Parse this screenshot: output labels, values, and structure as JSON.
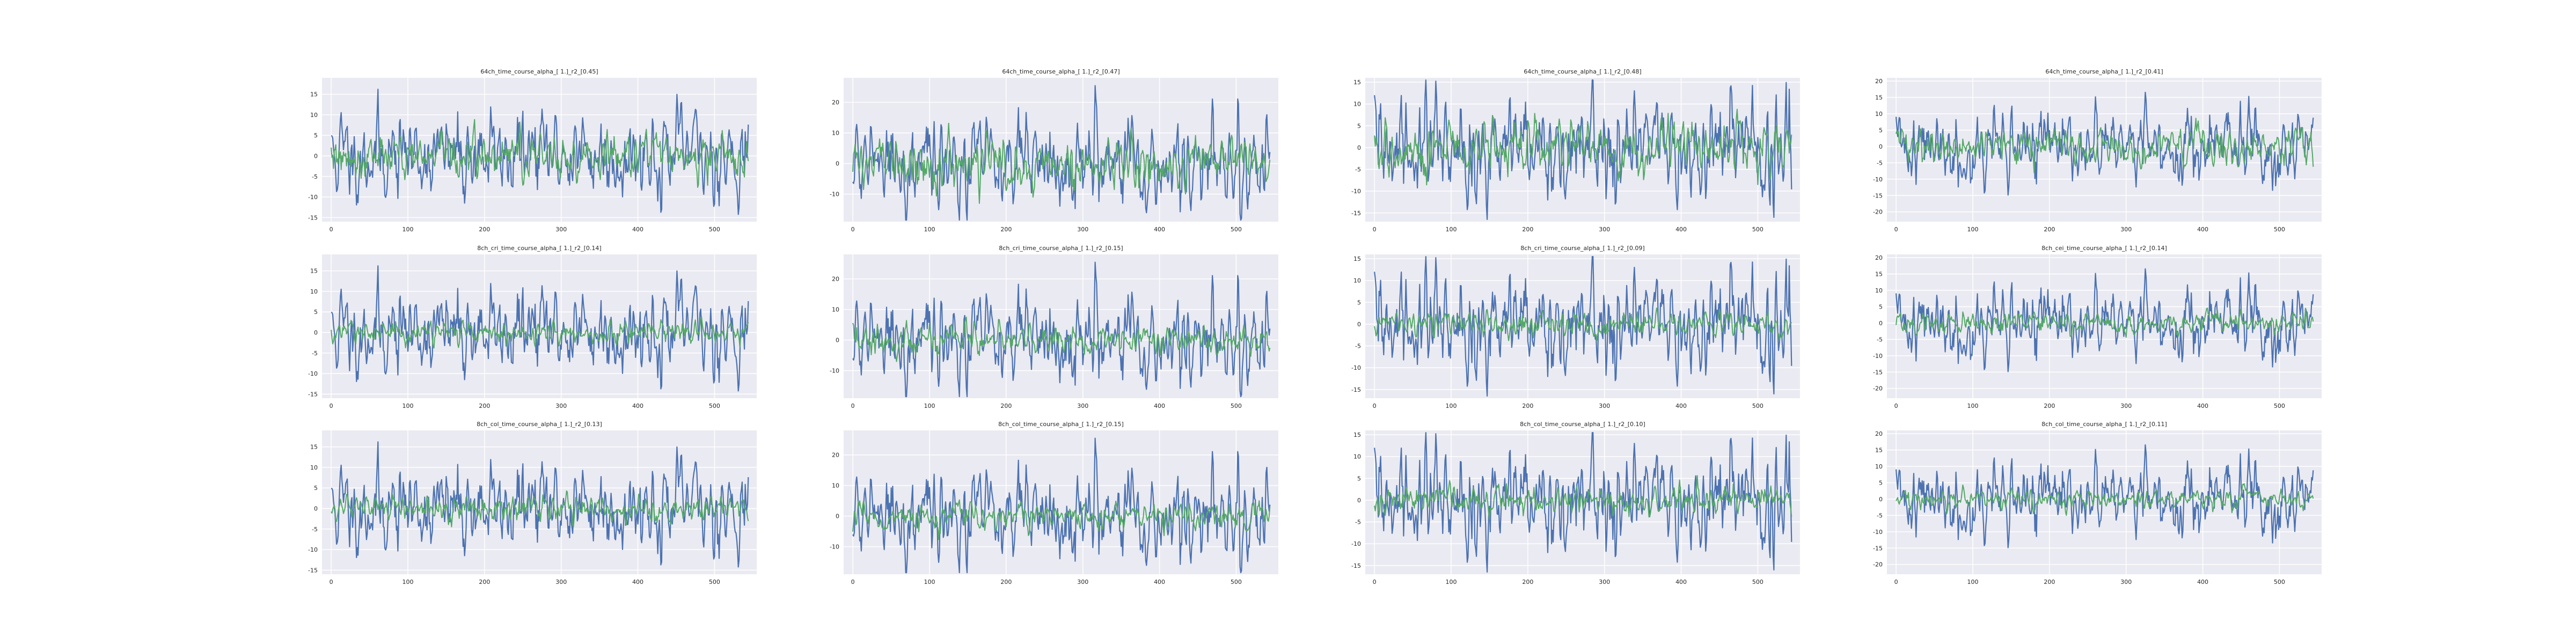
{
  "chart_data": [
    {
      "type": "line",
      "title": "64ch_time_course_alpha_[ 1.]_r2_[0.45]",
      "xlim": [
        -12,
        555
      ],
      "ylim": [
        -16,
        19
      ],
      "xticks": [
        0,
        100,
        200,
        300,
        400,
        500
      ],
      "yticks": [
        -15,
        -10,
        -5,
        0,
        5,
        10,
        15
      ],
      "series": [
        {
          "color": "#4c72b0",
          "amplitude": 5.2,
          "seed": 11
        },
        {
          "color": "#55a868",
          "amplitude": 2.6,
          "seed": 12
        }
      ]
    },
    {
      "type": "line",
      "title": "64ch_time_course_alpha_[ 1.]_r2_[0.47]",
      "xlim": [
        -12,
        555
      ],
      "ylim": [
        -19,
        28
      ],
      "xticks": [
        0,
        100,
        200,
        300,
        400,
        500
      ],
      "yticks": [
        -10,
        0,
        10,
        20
      ],
      "series": [
        {
          "color": "#4c72b0",
          "amplitude": 7.5,
          "seed": 21
        },
        {
          "color": "#55a868",
          "amplitude": 4.0,
          "seed": 22
        }
      ]
    },
    {
      "type": "line",
      "title": "64ch_time_course_alpha_[ 1.]_r2_[0.48]",
      "xlim": [
        -12,
        555
      ],
      "ylim": [
        -17,
        16
      ],
      "xticks": [
        0,
        100,
        200,
        300,
        400,
        500
      ],
      "yticks": [
        -15,
        -10,
        -5,
        0,
        5,
        10,
        15
      ],
      "series": [
        {
          "color": "#4c72b0",
          "amplitude": 5.8,
          "seed": 31
        },
        {
          "color": "#55a868",
          "amplitude": 3.0,
          "seed": 32
        }
      ]
    },
    {
      "type": "line",
      "title": "64ch_time_course_alpha_[ 1.]_r2_[0.41]",
      "xlim": [
        -12,
        555
      ],
      "ylim": [
        -23,
        21
      ],
      "xticks": [
        0,
        100,
        200,
        300,
        400,
        500
      ],
      "yticks": [
        -20,
        -15,
        -10,
        -5,
        0,
        5,
        10,
        15,
        20
      ],
      "series": [
        {
          "color": "#4c72b0",
          "amplitude": 5.5,
          "seed": 41
        },
        {
          "color": "#55a868",
          "amplitude": 2.8,
          "seed": 42
        }
      ]
    },
    {
      "type": "line",
      "title": "8ch_cri_time_course_alpha_[ 1.]_r2_[0.14]",
      "xlim": [
        -12,
        555
      ],
      "ylim": [
        -16,
        19
      ],
      "xticks": [
        0,
        100,
        200,
        300,
        400,
        500
      ],
      "yticks": [
        -15,
        -10,
        -5,
        0,
        5,
        10,
        15
      ],
      "series": [
        {
          "color": "#4c72b0",
          "amplitude": 5.2,
          "seed": 11
        },
        {
          "color": "#55a868",
          "amplitude": 1.3,
          "seed": 52
        }
      ]
    },
    {
      "type": "line",
      "title": "8ch_cri_time_course_alpha_[ 1.]_r2_[0.15]",
      "xlim": [
        -12,
        555
      ],
      "ylim": [
        -19,
        28
      ],
      "xticks": [
        0,
        100,
        200,
        300,
        400,
        500
      ],
      "yticks": [
        -10,
        0,
        10,
        20
      ],
      "series": [
        {
          "color": "#4c72b0",
          "amplitude": 7.5,
          "seed": 21
        },
        {
          "color": "#55a868",
          "amplitude": 2.3,
          "seed": 62
        }
      ]
    },
    {
      "type": "line",
      "title": "8ch_cri_time_course_alpha_[ 1.]_r2_[0.09]",
      "xlim": [
        -12,
        555
      ],
      "ylim": [
        -17,
        16
      ],
      "xticks": [
        0,
        100,
        200,
        300,
        400,
        500
      ],
      "yticks": [
        -15,
        -10,
        -5,
        0,
        5,
        10,
        15
      ],
      "series": [
        {
          "color": "#4c72b0",
          "amplitude": 5.8,
          "seed": 31
        },
        {
          "color": "#55a868",
          "amplitude": 1.4,
          "seed": 72
        }
      ]
    },
    {
      "type": "line",
      "title": "8ch_cei_time_course_alpha_[ 1.]_r2_[0.14]",
      "xlim": [
        -12,
        555
      ],
      "ylim": [
        -23,
        21
      ],
      "xticks": [
        0,
        100,
        200,
        300,
        400,
        500
      ],
      "yticks": [
        -20,
        -15,
        -10,
        -5,
        0,
        5,
        10,
        15,
        20
      ],
      "series": [
        {
          "color": "#4c72b0",
          "amplitude": 5.5,
          "seed": 41
        },
        {
          "color": "#55a868",
          "amplitude": 1.6,
          "seed": 82
        }
      ]
    },
    {
      "type": "line",
      "title": "8ch_col_time_course_alpha_[ 1.]_r2_[0.13]",
      "xlim": [
        -12,
        555
      ],
      "ylim": [
        -16,
        19
      ],
      "xticks": [
        0,
        100,
        200,
        300,
        400,
        500
      ],
      "yticks": [
        -15,
        -10,
        -5,
        0,
        5,
        10,
        15
      ],
      "series": [
        {
          "color": "#4c72b0",
          "amplitude": 5.2,
          "seed": 11
        },
        {
          "color": "#55a868",
          "amplitude": 1.5,
          "seed": 92
        }
      ]
    },
    {
      "type": "line",
      "title": "8ch_col_time_course_alpha_[ 1.]_r2_[0.15]",
      "xlim": [
        -12,
        555
      ],
      "ylim": [
        -19,
        28
      ],
      "xticks": [
        0,
        100,
        200,
        300,
        400,
        500
      ],
      "yticks": [
        -10,
        0,
        10,
        20
      ],
      "series": [
        {
          "color": "#4c72b0",
          "amplitude": 7.5,
          "seed": 21
        },
        {
          "color": "#55a868",
          "amplitude": 2.2,
          "seed": 102
        }
      ]
    },
    {
      "type": "line",
      "title": "8ch_col_time_course_alpha_[ 1.]_r2_[0.10]",
      "xlim": [
        -12,
        555
      ],
      "ylim": [
        -17,
        16
      ],
      "xticks": [
        0,
        100,
        200,
        300,
        400,
        500
      ],
      "yticks": [
        -15,
        -10,
        -5,
        0,
        5,
        10,
        15
      ],
      "series": [
        {
          "color": "#4c72b0",
          "amplitude": 5.8,
          "seed": 31
        },
        {
          "color": "#55a868",
          "amplitude": 1.5,
          "seed": 112
        }
      ]
    },
    {
      "type": "line",
      "title": "8ch_col_time_course_alpha_[ 1.]_r2_[0.11]",
      "xlim": [
        -12,
        555
      ],
      "ylim": [
        -23,
        21
      ],
      "xticks": [
        0,
        100,
        200,
        300,
        400,
        500
      ],
      "yticks": [
        -20,
        -15,
        -10,
        -5,
        0,
        5,
        10,
        15,
        20
      ],
      "series": [
        {
          "color": "#4c72b0",
          "amplitude": 5.5,
          "seed": 41
        },
        {
          "color": "#55a868",
          "amplitude": 1.5,
          "seed": 122
        }
      ]
    }
  ],
  "style": {
    "plot_background": "#eaeaf2",
    "grid_color": "#ffffff",
    "text_color": "#262626"
  },
  "n_points": 545
}
